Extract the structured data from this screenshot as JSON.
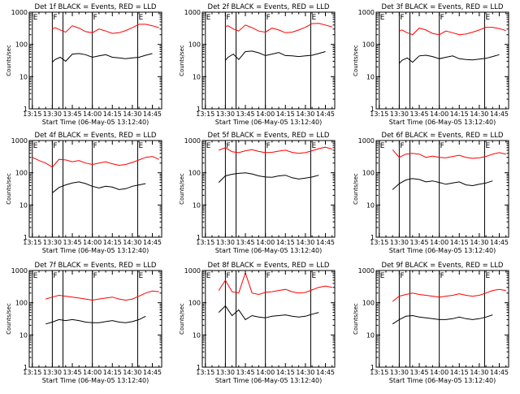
{
  "colors": {
    "events": "#000000",
    "lld": "#ff0000",
    "axis": "#000000",
    "background": "#ffffff"
  },
  "shared": {
    "xlabel": "Start Time (06-May-05 13:12:40)",
    "ylabel": "Counts/sec",
    "xticks": [
      "13:15",
      "13:30",
      "13:45",
      "14:00",
      "14:15",
      "14:30",
      "14:45"
    ],
    "xtick_minutes": [
      15,
      30,
      45,
      60,
      75,
      90,
      105
    ],
    "xlim_minutes": [
      12.7,
      112
    ],
    "yticks": [
      "1",
      "10",
      "100",
      "1000"
    ],
    "ytick_values": [
      1,
      10,
      100,
      1000
    ],
    "ylim": [
      1,
      1000
    ],
    "yscale": "log",
    "markers": [
      {
        "label": "E",
        "minute": 15
      },
      {
        "label": "F",
        "minute": 30
      },
      {
        "label": "",
        "minute": 38
      },
      {
        "label": "F",
        "minute": 60
      },
      {
        "label": "E",
        "minute": 94
      }
    ]
  },
  "chart_data": [
    {
      "type": "line",
      "title": "Det 1f BLACK = Events, RED = LLD",
      "x": [
        30,
        32,
        36,
        40,
        45,
        50,
        55,
        60,
        65,
        70,
        75,
        80,
        85,
        90,
        95,
        100,
        105,
        110
      ],
      "series": [
        {
          "values": [
            300,
            330,
            280,
            240,
            380,
            320,
            250,
            230,
            300,
            260,
            220,
            230,
            270,
            330,
            420,
            420,
            380,
            330
          ]
        },
        {
          "values": [
            28,
            34,
            40,
            30,
            50,
            52,
            48,
            40,
            44,
            48,
            40,
            38,
            36,
            38,
            40,
            46,
            52,
            null
          ]
        }
      ]
    },
    {
      "type": "line",
      "title": "Det 2f BLACK = Events, RED = LLD",
      "x": [
        30,
        32,
        36,
        40,
        45,
        50,
        55,
        60,
        65,
        70,
        75,
        80,
        85,
        90,
        95,
        100,
        105,
        110
      ],
      "series": [
        {
          "values": [
            360,
            380,
            300,
            260,
            400,
            330,
            260,
            240,
            320,
            280,
            230,
            240,
            280,
            340,
            440,
            450,
            400,
            350
          ]
        },
        {
          "values": [
            32,
            40,
            50,
            34,
            60,
            62,
            55,
            45,
            50,
            56,
            45,
            44,
            42,
            44,
            46,
            52,
            60,
            null
          ]
        }
      ]
    },
    {
      "type": "line",
      "title": "Det 3f BLACK = Events, RED = LLD",
      "x": [
        30,
        32,
        36,
        40,
        45,
        50,
        55,
        60,
        65,
        70,
        75,
        80,
        85,
        90,
        95,
        100,
        105,
        110
      ],
      "series": [
        {
          "values": [
            260,
            280,
            230,
            200,
            320,
            280,
            220,
            200,
            260,
            230,
            200,
            210,
            240,
            280,
            340,
            340,
            310,
            270
          ]
        },
        {
          "values": [
            26,
            32,
            38,
            28,
            44,
            46,
            42,
            36,
            40,
            44,
            36,
            34,
            33,
            35,
            37,
            42,
            48,
            null
          ]
        }
      ]
    },
    {
      "type": "line",
      "title": "Det 4f BLACK = Events, RED = LLD",
      "x": [
        15,
        20,
        25,
        30,
        35,
        40,
        45,
        50,
        55,
        60,
        65,
        70,
        75,
        80,
        85,
        90,
        95,
        100,
        105,
        110
      ],
      "series": [
        {
          "values": [
            300,
            240,
            200,
            150,
            260,
            250,
            220,
            240,
            200,
            180,
            200,
            220,
            190,
            170,
            180,
            210,
            250,
            300,
            320,
            260
          ]
        },
        {
          "values": [
            null,
            null,
            null,
            24,
            35,
            42,
            48,
            52,
            46,
            38,
            34,
            38,
            36,
            30,
            32,
            38,
            42,
            46,
            null,
            null
          ]
        }
      ]
    },
    {
      "type": "line",
      "title": "Det 5f BLACK = Events, RED = LLD",
      "x": [
        15,
        20,
        25,
        30,
        35,
        40,
        45,
        50,
        55,
        60,
        65,
        70,
        75,
        80,
        85,
        90,
        95,
        100,
        105,
        110
      ],
      "series": [
        {
          "values": [
            null,
            null,
            500,
            600,
            450,
            420,
            480,
            520,
            460,
            420,
            430,
            470,
            500,
            430,
            400,
            420,
            480,
            560,
            620,
            540
          ]
        },
        {
          "values": [
            null,
            null,
            50,
            80,
            90,
            96,
            100,
            92,
            80,
            74,
            72,
            80,
            84,
            70,
            64,
            68,
            74,
            84,
            null,
            null
          ]
        }
      ]
    },
    {
      "type": "line",
      "title": "Det 6f BLACK = Events, RED = LLD",
      "x": [
        15,
        20,
        25,
        30,
        35,
        40,
        45,
        50,
        55,
        60,
        65,
        70,
        75,
        80,
        85,
        90,
        95,
        100,
        105,
        110
      ],
      "series": [
        {
          "values": [
            null,
            null,
            520,
            300,
            380,
            400,
            380,
            300,
            330,
            300,
            290,
            320,
            350,
            300,
            280,
            290,
            320,
            380,
            420,
            380
          ]
        },
        {
          "values": [
            null,
            null,
            30,
            46,
            60,
            66,
            62,
            52,
            56,
            50,
            44,
            48,
            52,
            42,
            40,
            44,
            48,
            56,
            null,
            null
          ]
        }
      ]
    },
    {
      "type": "line",
      "title": "Det 7f BLACK = Events, RED = LLD",
      "x": [
        15,
        20,
        25,
        30,
        35,
        40,
        45,
        50,
        55,
        60,
        65,
        70,
        75,
        80,
        85,
        90,
        95,
        100,
        105,
        110
      ],
      "series": [
        {
          "values": [
            null,
            null,
            130,
            150,
            170,
            160,
            150,
            140,
            130,
            120,
            130,
            140,
            150,
            130,
            120,
            130,
            160,
            200,
            230,
            220
          ]
        },
        {
          "values": [
            null,
            null,
            22,
            25,
            30,
            28,
            30,
            28,
            25,
            24,
            24,
            26,
            28,
            25,
            24,
            26,
            30,
            38,
            null,
            null
          ]
        }
      ]
    },
    {
      "type": "line",
      "title": "Det 8f BLACK = Events, RED = LLD",
      "x": [
        15,
        20,
        25,
        30,
        35,
        40,
        45,
        50,
        55,
        60,
        65,
        70,
        75,
        80,
        85,
        90,
        95,
        100,
        105,
        110
      ],
      "series": [
        {
          "values": [
            null,
            null,
            240,
            500,
            220,
            200,
            850,
            200,
            180,
            210,
            220,
            240,
            260,
            220,
            200,
            210,
            250,
            300,
            330,
            300
          ]
        },
        {
          "values": [
            null,
            null,
            50,
            80,
            40,
            60,
            30,
            40,
            36,
            34,
            38,
            40,
            42,
            38,
            36,
            38,
            44,
            50,
            null,
            null
          ]
        }
      ]
    },
    {
      "type": "line",
      "title": "Det 9f BLACK = Events, RED = LLD",
      "x": [
        15,
        20,
        25,
        30,
        35,
        40,
        45,
        50,
        55,
        60,
        65,
        70,
        75,
        80,
        85,
        90,
        95,
        100,
        105,
        110
      ],
      "series": [
        {
          "values": [
            null,
            null,
            110,
            160,
            180,
            200,
            180,
            170,
            160,
            150,
            160,
            170,
            190,
            170,
            160,
            170,
            200,
            240,
            260,
            240
          ]
        },
        {
          "values": [
            null,
            null,
            22,
            30,
            38,
            40,
            36,
            34,
            32,
            30,
            30,
            32,
            36,
            32,
            30,
            32,
            36,
            42,
            null,
            null
          ]
        }
      ]
    }
  ]
}
